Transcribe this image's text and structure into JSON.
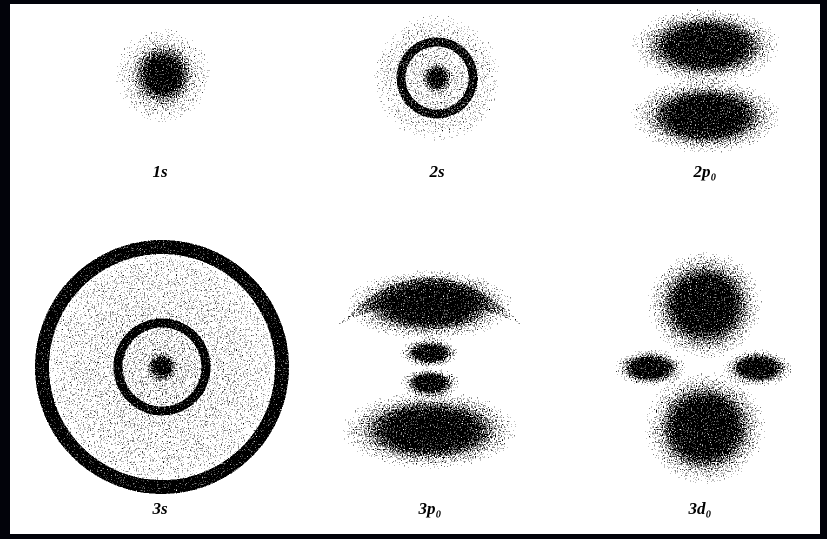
{
  "orbitals": [
    {
      "label": "1s"
    },
    {
      "label": "2s"
    },
    {
      "label": "2p₀"
    },
    {
      "label": "3s"
    },
    {
      "label": "3p₀"
    },
    {
      "label": "3d₀"
    }
  ]
}
